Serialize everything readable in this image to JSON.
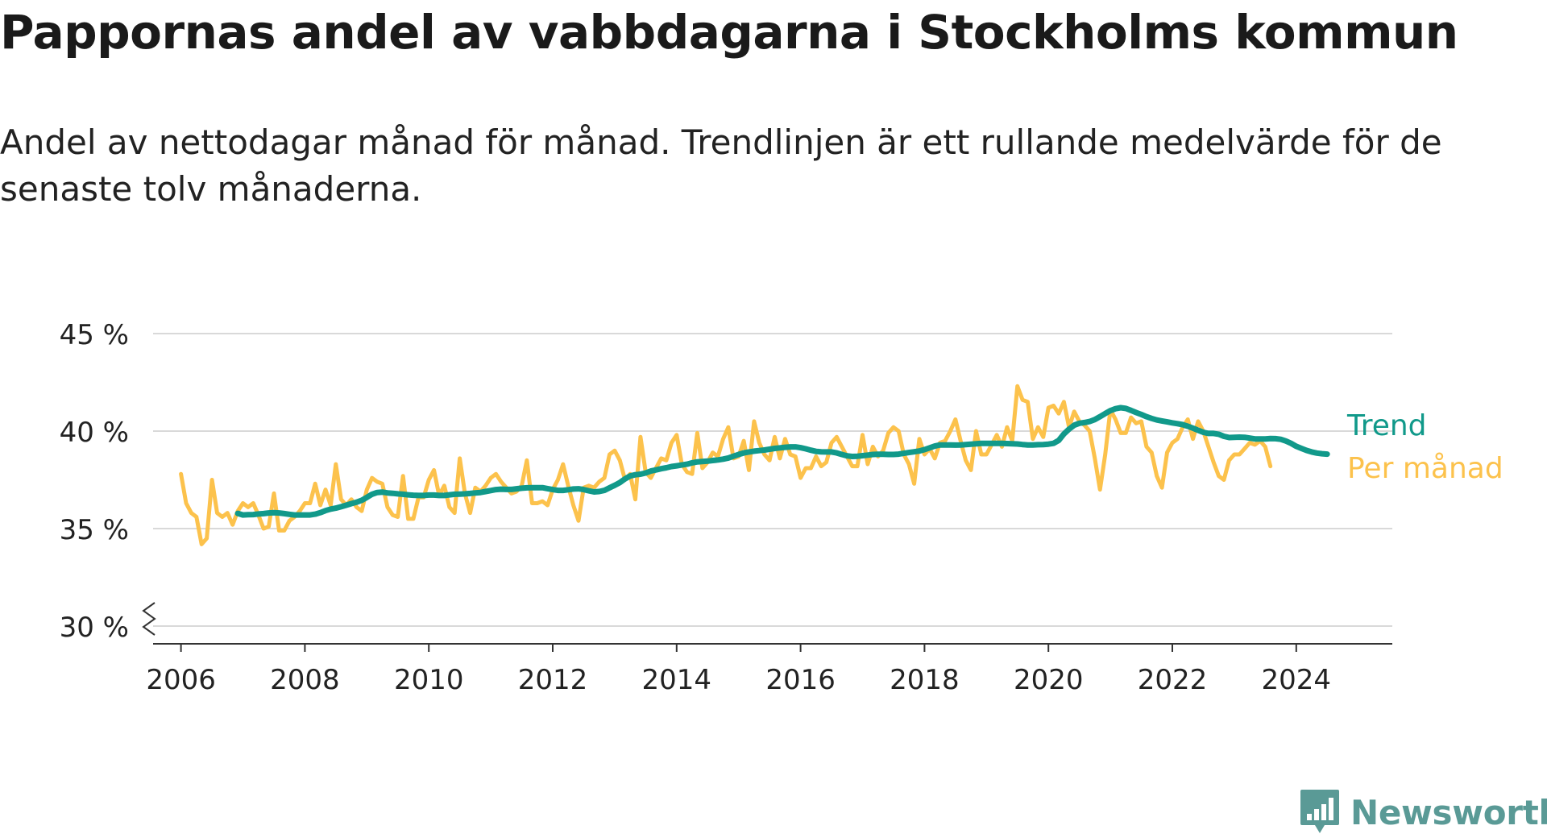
{
  "title": "Pappornas andel av vabbdagarna i Stockholms kommun",
  "subtitle": "Andel av nettodagar månad för månad. Trendlinjen är ett rullande medelvärde för de senaste tolv månaderna.",
  "brand": "Newsworthy",
  "colors": {
    "trend": "#11998a",
    "monthly": "#fcc24c",
    "grid": "#d9d9d9",
    "axis": "#333333",
    "text": "#222222",
    "brand": "#5a9a96"
  },
  "chart_data": {
    "type": "line",
    "title": "Pappornas andel av vabbdagarna i Stockholms kommun",
    "xlabel": "",
    "ylabel": "",
    "xlim": [
      2005.55,
      2025.55
    ],
    "ylim": [
      30,
      45
    ],
    "y_ticks": [
      30,
      35,
      40,
      45
    ],
    "y_tick_labels": [
      "30 %",
      "35 %",
      "40 %",
      "45 %"
    ],
    "x_ticks": [
      2006,
      2008,
      2010,
      2012,
      2014,
      2016,
      2018,
      2020,
      2022,
      2024
    ],
    "x_tick_labels": [
      "2006",
      "2008",
      "2010",
      "2012",
      "2014",
      "2016",
      "2018",
      "2020",
      "2022",
      "2024"
    ],
    "y_axis_break": true,
    "grid": true,
    "legend": "right-end-labels",
    "series": [
      {
        "name": "Per månad",
        "color": "#fcc24c",
        "x_start": 2006.0,
        "x_step": 0.08333,
        "values": [
          37.8,
          36.3,
          35.8,
          35.6,
          34.2,
          34.5,
          37.5,
          35.8,
          35.6,
          35.8,
          35.2,
          35.9,
          36.3,
          36.1,
          36.3,
          35.7,
          35.0,
          35.1,
          36.8,
          34.9,
          34.9,
          35.4,
          35.6,
          35.9,
          36.3,
          36.3,
          37.3,
          36.2,
          37.0,
          36.2,
          38.3,
          36.5,
          36.2,
          36.5,
          36.1,
          35.9,
          37.0,
          37.6,
          37.4,
          37.3,
          36.1,
          35.7,
          35.6,
          37.7,
          35.5,
          35.5,
          36.6,
          36.6,
          37.5,
          38.0,
          36.7,
          37.2,
          36.1,
          35.8,
          38.6,
          36.8,
          35.8,
          37.1,
          36.9,
          37.2,
          37.6,
          37.8,
          37.4,
          37.1,
          36.8,
          36.9,
          37.2,
          38.5,
          36.3,
          36.3,
          36.4,
          36.2,
          37.0,
          37.5,
          38.3,
          37.2,
          36.2,
          35.4,
          37.1,
          37.2,
          37.1,
          37.4,
          37.6,
          38.8,
          39.0,
          38.5,
          37.5,
          37.8,
          36.5,
          39.7,
          37.9,
          37.6,
          38.1,
          38.6,
          38.5,
          39.4,
          39.8,
          38.3,
          37.9,
          37.8,
          39.9,
          38.1,
          38.4,
          38.9,
          38.7,
          39.6,
          40.2,
          38.6,
          38.7,
          39.5,
          38.0,
          40.5,
          39.4,
          38.8,
          38.5,
          39.7,
          38.6,
          39.6,
          38.8,
          38.7,
          37.6,
          38.1,
          38.1,
          38.7,
          38.2,
          38.4,
          39.4,
          39.7,
          39.2,
          38.7,
          38.2,
          38.2,
          39.8,
          38.3,
          39.2,
          38.7,
          39.0,
          39.9,
          40.2,
          40.0,
          38.8,
          38.3,
          37.3,
          39.6,
          38.8,
          39.1,
          38.6,
          39.4,
          39.5,
          40.0,
          40.6,
          39.5,
          38.5,
          38.0,
          40.0,
          38.8,
          38.8,
          39.3,
          39.8,
          39.2,
          40.2,
          39.5,
          42.3,
          41.6,
          41.5,
          39.6,
          40.2,
          39.7,
          41.2,
          41.3,
          40.9,
          41.5,
          40.2,
          41.0,
          40.5,
          40.3,
          40.0,
          38.6,
          37.0,
          38.8,
          41.1,
          40.6,
          39.9,
          39.9,
          40.7,
          40.4,
          40.5,
          39.2,
          38.9,
          37.7,
          37.1,
          38.9,
          39.4,
          39.6,
          40.2,
          40.6,
          39.6,
          40.5,
          40.0,
          39.2,
          38.4,
          37.7,
          37.5,
          38.5,
          38.8,
          38.8,
          39.1,
          39.4,
          39.3,
          39.5,
          39.2,
          38.2
        ]
      },
      {
        "name": "Trend",
        "color": "#11998a",
        "x_start": 2006.9167,
        "x_step": 0.08333,
        "values": [
          35.78,
          35.7,
          35.71,
          35.72,
          35.75,
          35.77,
          35.8,
          35.82,
          35.8,
          35.77,
          35.73,
          35.7,
          35.7,
          35.7,
          35.7,
          35.74,
          35.82,
          35.92,
          36.0,
          36.05,
          36.12,
          36.2,
          36.28,
          36.35,
          36.45,
          36.6,
          36.76,
          36.85,
          36.87,
          36.83,
          36.81,
          36.78,
          36.76,
          36.73,
          36.71,
          36.7,
          36.7,
          36.72,
          36.72,
          36.7,
          36.7,
          36.73,
          36.76,
          36.77,
          36.78,
          36.8,
          36.83,
          36.85,
          36.9,
          36.95,
          37.0,
          37.02,
          37.01,
          37.01,
          37.04,
          37.07,
          37.09,
          37.1,
          37.1,
          37.1,
          37.05,
          37.0,
          36.96,
          36.96,
          36.99,
          37.03,
          37.04,
          37.0,
          36.94,
          36.88,
          36.9,
          36.96,
          37.09,
          37.22,
          37.36,
          37.55,
          37.7,
          37.76,
          37.79,
          37.85,
          37.95,
          38.01,
          38.07,
          38.12,
          38.18,
          38.22,
          38.26,
          38.3,
          38.37,
          38.42,
          38.44,
          38.46,
          38.49,
          38.52,
          38.56,
          38.62,
          38.71,
          38.8,
          38.88,
          38.93,
          38.97,
          39.0,
          39.03,
          39.07,
          39.11,
          39.14,
          39.17,
          39.19,
          39.19,
          39.15,
          39.09,
          39.02,
          38.96,
          38.94,
          38.93,
          38.93,
          38.88,
          38.8,
          38.73,
          38.7,
          38.71,
          38.74,
          38.77,
          38.8,
          38.81,
          38.81,
          38.8,
          38.8,
          38.82,
          38.86,
          38.9,
          38.94,
          38.98,
          39.05,
          39.14,
          39.23,
          39.29,
          39.29,
          39.29,
          39.28,
          39.29,
          39.31,
          39.33,
          39.35,
          39.37,
          39.37,
          39.37,
          39.37,
          39.37,
          39.36,
          39.35,
          39.34,
          39.31,
          39.29,
          39.29,
          39.3,
          39.31,
          39.33,
          39.37,
          39.52,
          39.85,
          40.1,
          40.3,
          40.4,
          40.44,
          40.49,
          40.59,
          40.74,
          40.9,
          41.05,
          41.15,
          41.2,
          41.16,
          41.06,
          40.95,
          40.85,
          40.74,
          40.65,
          40.57,
          40.52,
          40.47,
          40.42,
          40.38,
          40.33,
          40.25,
          40.15,
          40.04,
          39.94,
          39.88,
          39.88,
          39.84,
          39.73,
          39.67,
          39.68,
          39.69,
          39.68,
          39.64,
          39.6,
          39.6,
          39.6,
          39.62,
          39.61,
          39.58,
          39.49,
          39.37,
          39.22,
          39.11,
          39.01,
          38.93,
          38.87,
          38.84,
          38.82
        ]
      }
    ],
    "end_labels": [
      "Trend",
      "Per månad"
    ]
  }
}
